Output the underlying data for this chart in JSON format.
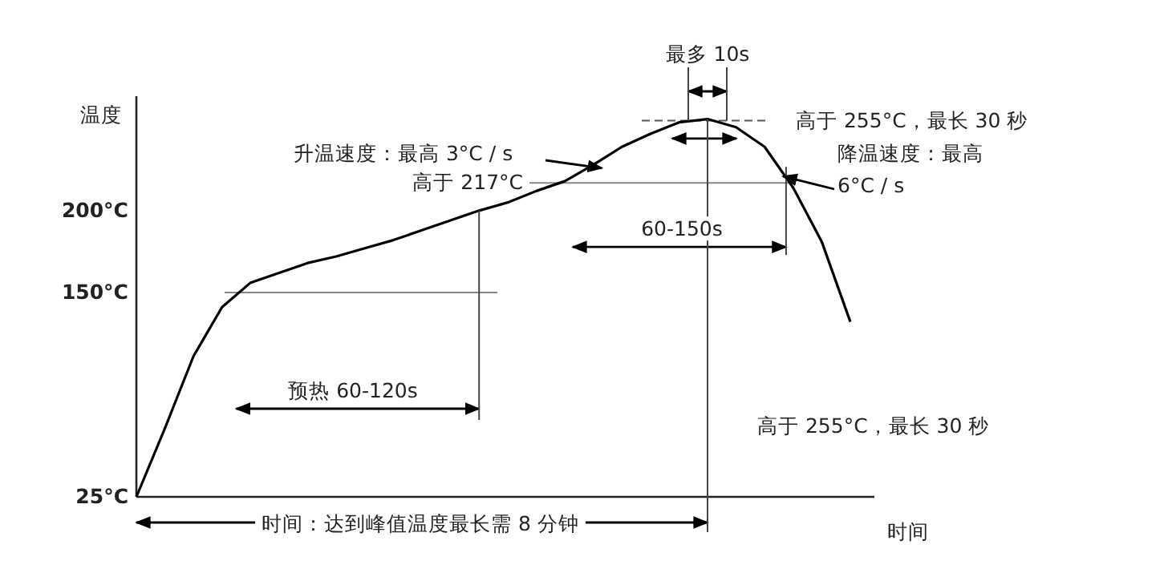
{
  "chart_data": {
    "type": "line",
    "xlabel": "时间",
    "ylabel": "温度",
    "categories": [
      null,
      null,
      null,
      null,
      null,
      null,
      null,
      null,
      null,
      null,
      null,
      null,
      null,
      null,
      null,
      null,
      null,
      null,
      null,
      null,
      null,
      null,
      null,
      null,
      null,
      null
    ],
    "series": [
      {
        "color": "#000000",
        "values": [
          25,
          67,
          111,
          141,
          156,
          162,
          168,
          172,
          177,
          182,
          188,
          194,
          200,
          205,
          212,
          218,
          228,
          239,
          247,
          254,
          256,
          251,
          239,
          214,
          181,
          132
        ]
      }
    ],
    "ylim": [
      25,
      270
    ],
    "yticks": [
      {
        "value": 25,
        "label": "25°C"
      },
      {
        "value": 150,
        "label": "150°C"
      },
      {
        "value": 200,
        "label": "200°C"
      }
    ],
    "ref_lines": [
      {
        "axis": "y",
        "value": 150,
        "color": "#888888"
      },
      {
        "axis": "y",
        "value": 217,
        "label": "高于 217°C",
        "color": "#888888"
      },
      {
        "axis": "y",
        "value": 255,
        "color": "#555555",
        "line_style": "dashed"
      }
    ],
    "annotations": [
      "最多 10s",
      "高于 255°C，最长 30 秒",
      "升温速度：最高 3°C / s",
      "降温速度：最高 6°C / s",
      "60-150s",
      "预热 60-120s",
      "时间：达到峰值温度最长需 8 分钟",
      "高于 255°C，最长 30 秒"
    ],
    "marker": "none",
    "line_style": "solid"
  }
}
